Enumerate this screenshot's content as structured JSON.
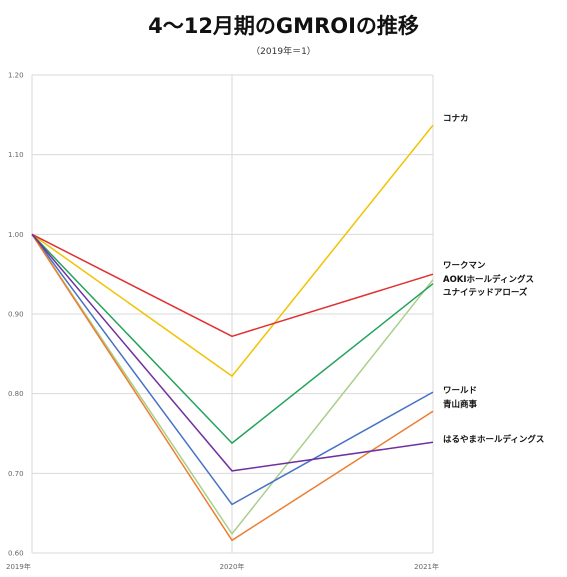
{
  "chart_data": {
    "type": "line",
    "title": "4～12月期のGMROIの推移",
    "subtitle": "（2019年＝1）",
    "xlabel": "",
    "ylabel": "",
    "categories": [
      "2019年",
      "2020年",
      "2021年"
    ],
    "ylim": [
      0.6,
      1.2
    ],
    "yticks": [
      "0.60",
      "0.70",
      "0.80",
      "0.90",
      "1.00",
      "1.10",
      "1.20"
    ],
    "grid": true,
    "legend": "labels at line ends (right)",
    "series": [
      {
        "name": "コナカ",
        "color": "#f2c200",
        "values": [
          1.0,
          0.822,
          1.137
        ]
      },
      {
        "name": "ワークマン",
        "color": "#e03030",
        "values": [
          1.0,
          0.872,
          0.95
        ]
      },
      {
        "name": "AOKIホールディングス",
        "color": "#a8cf8a",
        "values": [
          1.0,
          0.624,
          0.943
        ]
      },
      {
        "name": "ユナイテッドアローズ",
        "color": "#23a35a",
        "values": [
          1.0,
          0.738,
          0.938
        ]
      },
      {
        "name": "ワールド",
        "color": "#4472c4",
        "values": [
          1.0,
          0.661,
          0.802
        ]
      },
      {
        "name": "青山商事",
        "color": "#ed7d31",
        "values": [
          1.0,
          0.616,
          0.778
        ]
      },
      {
        "name": "はるやまホールディングス",
        "color": "#7030a0",
        "values": [
          1.0,
          0.703,
          0.739
        ]
      }
    ]
  }
}
